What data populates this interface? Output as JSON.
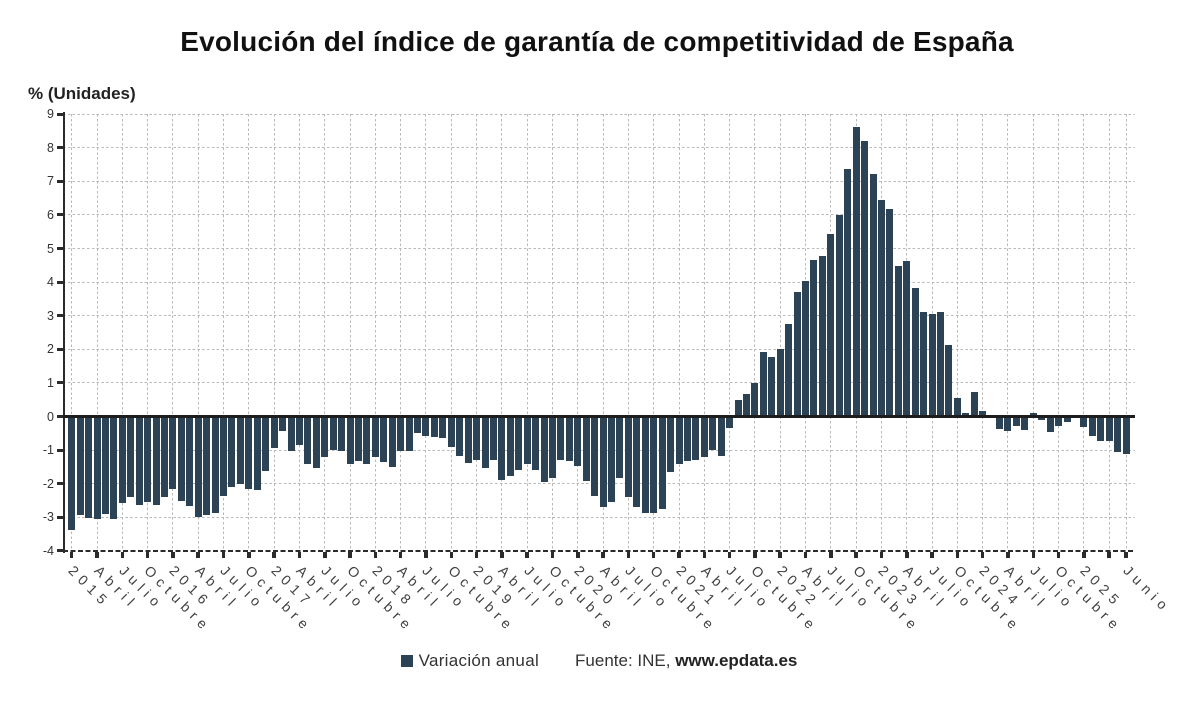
{
  "title": "Evolución del índice de garantía de competitividad de España",
  "y_axis_title": "% (Unidades)",
  "legend": {
    "label": "Variación anual",
    "swatch_color": "#2c4356"
  },
  "source": {
    "prefix": "Fuente: INE, ",
    "site": "www.epdata.es"
  },
  "chart_data": {
    "type": "bar",
    "title": "Evolución del índice de garantía de competitividad de España",
    "xlabel": "",
    "ylabel": "% (Unidades)",
    "ylim": [
      -4,
      9
    ],
    "grid": true,
    "legend_position": "bottom",
    "bar_color": "#2c4356",
    "y_ticks": [
      9,
      8,
      7,
      6,
      5,
      4,
      3,
      2,
      1,
      0,
      -1,
      -2,
      -3,
      -4
    ],
    "x_start_month": "Enero 2015",
    "x_end_month": "Junio 2025",
    "x_tick_labels": [
      {
        "month_index": 0,
        "label": "2015"
      },
      {
        "month_index": 3,
        "label": "Abril"
      },
      {
        "month_index": 6,
        "label": "Julio"
      },
      {
        "month_index": 9,
        "label": "Octubre"
      },
      {
        "month_index": 12,
        "label": "2016"
      },
      {
        "month_index": 15,
        "label": "Abril"
      },
      {
        "month_index": 18,
        "label": "Julio"
      },
      {
        "month_index": 21,
        "label": "Octubre"
      },
      {
        "month_index": 24,
        "label": "2017"
      },
      {
        "month_index": 27,
        "label": "Abril"
      },
      {
        "month_index": 30,
        "label": "Julio"
      },
      {
        "month_index": 33,
        "label": "Octubre"
      },
      {
        "month_index": 36,
        "label": "2018"
      },
      {
        "month_index": 39,
        "label": "Abril"
      },
      {
        "month_index": 42,
        "label": "Julio"
      },
      {
        "month_index": 45,
        "label": "Octubre"
      },
      {
        "month_index": 48,
        "label": "2019"
      },
      {
        "month_index": 51,
        "label": "Abril"
      },
      {
        "month_index": 54,
        "label": "Julio"
      },
      {
        "month_index": 57,
        "label": "Octubre"
      },
      {
        "month_index": 60,
        "label": "2020"
      },
      {
        "month_index": 63,
        "label": "Abril"
      },
      {
        "month_index": 66,
        "label": "Julio"
      },
      {
        "month_index": 69,
        "label": "Octubre"
      },
      {
        "month_index": 72,
        "label": "2021"
      },
      {
        "month_index": 75,
        "label": "Abril"
      },
      {
        "month_index": 78,
        "label": "Julio"
      },
      {
        "month_index": 81,
        "label": "Octubre"
      },
      {
        "month_index": 84,
        "label": "2022"
      },
      {
        "month_index": 87,
        "label": "Abril"
      },
      {
        "month_index": 90,
        "label": "Julio"
      },
      {
        "month_index": 93,
        "label": "Octubre"
      },
      {
        "month_index": 96,
        "label": "2023"
      },
      {
        "month_index": 99,
        "label": "Abril"
      },
      {
        "month_index": 102,
        "label": "Julio"
      },
      {
        "month_index": 105,
        "label": "Octubre"
      },
      {
        "month_index": 108,
        "label": "2024"
      },
      {
        "month_index": 111,
        "label": "Abril"
      },
      {
        "month_index": 114,
        "label": "Julio"
      },
      {
        "month_index": 117,
        "label": "Octubre"
      },
      {
        "month_index": 120,
        "label": "2025"
      },
      {
        "month_index": 125,
        "label": "Junio"
      }
    ],
    "unlabeled_grid_months": [
      123
    ],
    "series": [
      {
        "name": "Variación anual",
        "values": [
          -3.37,
          -2.93,
          -3.02,
          -3.06,
          -2.9,
          -3.04,
          -2.56,
          -2.4,
          -2.62,
          -2.53,
          -2.63,
          -2.41,
          -2.17,
          -2.52,
          -2.66,
          -2.99,
          -2.93,
          -2.86,
          -2.37,
          -2.1,
          -2.01,
          -2.16,
          -2.2,
          -1.62,
          -0.93,
          -0.44,
          -1.02,
          -0.84,
          -1.4,
          -1.54,
          -1.22,
          -1.0,
          -1.04,
          -1.4,
          -1.33,
          -1.4,
          -1.2,
          -1.36,
          -1.5,
          -1.04,
          -1.02,
          -0.48,
          -0.59,
          -0.62,
          -0.64,
          -0.91,
          -1.19,
          -1.37,
          -1.3,
          -1.52,
          -1.3,
          -1.9,
          -1.78,
          -1.59,
          -1.4,
          -1.59,
          -1.96,
          -1.82,
          -1.29,
          -1.33,
          -1.48,
          -1.91,
          -2.37,
          -2.68,
          -2.54,
          -1.84,
          -2.39,
          -2.68,
          -2.86,
          -2.86,
          -2.74,
          -1.66,
          -1.4,
          -1.32,
          -1.3,
          -1.21,
          -1.0,
          -1.17,
          -0.34,
          0.5,
          0.66,
          1.01,
          1.93,
          1.77,
          2.0,
          2.75,
          3.7,
          4.04,
          4.66,
          4.77,
          5.43,
          5.99,
          7.37,
          8.63,
          8.2,
          7.22,
          6.43,
          6.17,
          4.48,
          4.63,
          3.82,
          3.11,
          3.04,
          3.11,
          2.14,
          0.56,
          0.09,
          0.72,
          0.17,
          -0.03,
          -0.38,
          -0.43,
          -0.27,
          -0.41,
          0.09,
          -0.09,
          -0.45,
          -0.27,
          -0.17,
          0.03,
          -0.32,
          -0.57,
          -0.72,
          -0.72,
          -1.06,
          -1.13
        ]
      }
    ]
  }
}
